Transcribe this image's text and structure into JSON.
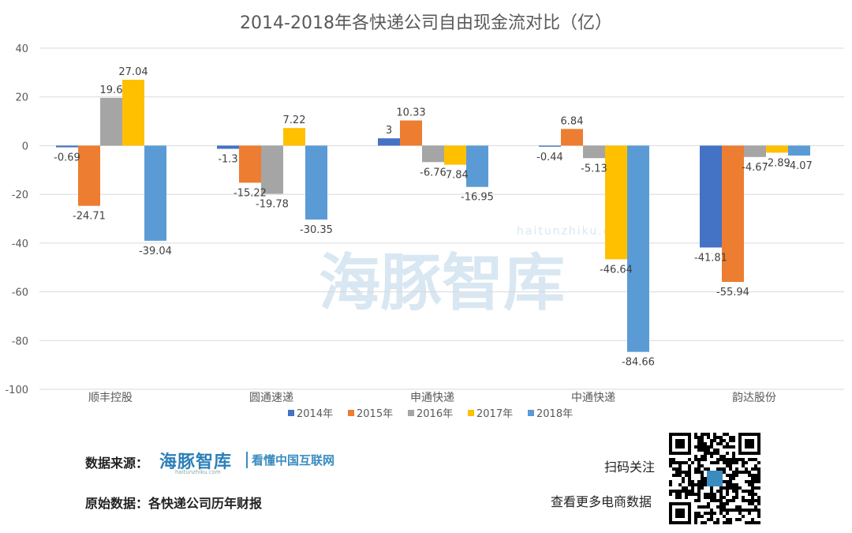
{
  "chart_data": {
    "type": "bar",
    "title": "2014-2018年各快递公司自由现金流对比（亿）",
    "categories": [
      "顺丰控股",
      "圆通速递",
      "申通快递",
      "中通快递",
      "韵达股份"
    ],
    "series": [
      {
        "name": "2014年",
        "color": "#4472c4",
        "values": [
          -0.69,
          -1.3,
          3,
          -0.44,
          -41.81
        ]
      },
      {
        "name": "2015年",
        "color": "#ed7d31",
        "values": [
          -24.71,
          -15.22,
          10.33,
          6.84,
          -55.94
        ]
      },
      {
        "name": "2016年",
        "color": "#a5a5a5",
        "values": [
          19.6,
          -19.78,
          -6.76,
          -5.13,
          -4.67
        ]
      },
      {
        "name": "2017年",
        "color": "#ffc000",
        "values": [
          27.04,
          7.22,
          -7.84,
          -46.64,
          -2.89
        ]
      },
      {
        "name": "2018年",
        "color": "#5b9bd5",
        "values": [
          -39.04,
          -30.35,
          -16.95,
          -84.66,
          -4.07
        ]
      }
    ],
    "ylim": [
      -100,
      40
    ],
    "yticks": [
      40,
      20,
      0,
      -20,
      -40,
      -60,
      -80,
      -100
    ],
    "grid": true,
    "legend": "bottom",
    "watermark": "海豚智库 haitunzhiku.com"
  },
  "footer": {
    "source_label": "数据来源：",
    "logo_text": "海豚智库",
    "logo_url_text": "haitunzhiku.com",
    "slogan": "看懂中国互联网",
    "raw_label": "原始数据：各快递公司历年财报",
    "scan_text": "扫码关注",
    "more_text": "查看更多电商数据"
  }
}
